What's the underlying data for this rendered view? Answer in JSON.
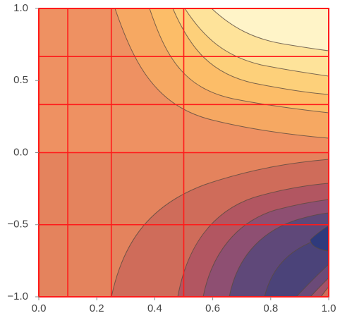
{
  "chart_data": {
    "type": "contour",
    "xlim": [
      0,
      1
    ],
    "ylim": [
      -1,
      1
    ],
    "xticks": [
      {
        "value": 0,
        "label": "0.0"
      },
      0.2,
      0.4,
      0.6,
      0.8,
      {
        "value": 1,
        "label": "1.0"
      }
    ],
    "yticks": [
      {
        "value": -1,
        "label": "−1.0"
      },
      {
        "value": -0.5,
        "label": "−0.5"
      },
      {
        "value": 0,
        "label": "0.0"
      },
      0.5,
      {
        "value": 1,
        "label": "1.0"
      }
    ],
    "mesh_x": [
      0.1,
      0.25,
      0.5
    ],
    "mesh_y": [
      -0.5,
      0,
      0.3333,
      0.6667
    ],
    "mesh_color": "#ff1a1a"
  }
}
